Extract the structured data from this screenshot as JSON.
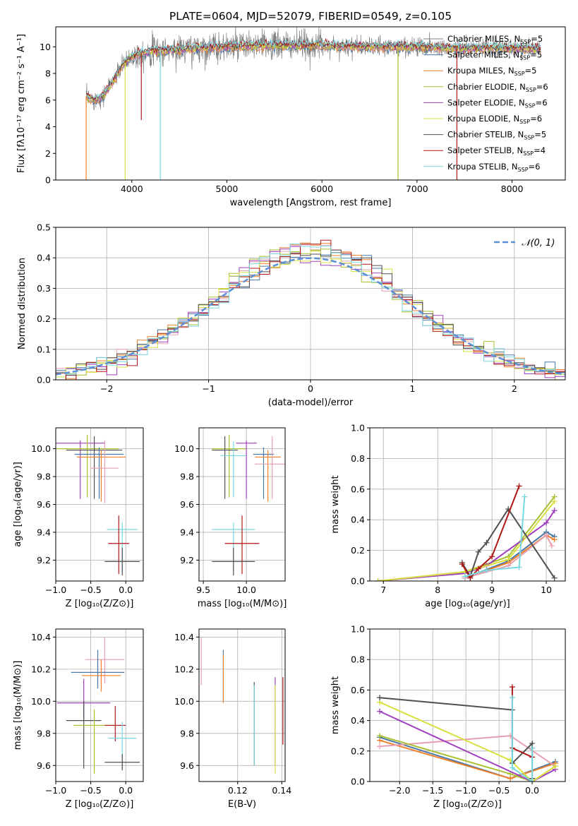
{
  "colors": {
    "grid": "#b0b0b0",
    "gray": "#808080",
    "gauss": "#5b8fd6",
    "series": [
      "#4878a8",
      "#f0802a",
      "#e8a0b0",
      "#a8c030",
      "#a040c0",
      "#d8e040",
      "#505050",
      "#b01818",
      "#78d8e0"
    ],
    "series_names": [
      "Chabrier MILES",
      "Salpeter MILES",
      "Kroupa MILES",
      "Chabrier ELODIE",
      "Salpeter ELODIE",
      "Kroupa ELODIE",
      "Chabrier STELIB",
      "Salpeter STELIB",
      "Kroupa STELIB"
    ]
  },
  "chart_data": [
    {
      "id": "spectrum",
      "type": "line",
      "title": "PLATE=0604, MJD=52079, FIBERID=0549, z=0.105",
      "xlabel": "wavelength [Angstrom, rest frame]",
      "ylabel": "Flux [fλ10⁻¹⁷ erg cm⁻² s⁻¹ A⁻¹]",
      "xlim": [
        3200,
        8560
      ],
      "ylim": [
        0,
        11.5
      ],
      "xticks": [
        4000,
        5000,
        6000,
        7000,
        8000
      ],
      "yticks": [
        0,
        2,
        4,
        6,
        8,
        10
      ],
      "grid": false,
      "legend_position": "right",
      "legend": [
        "Chabrier MILES, N_SSP=5",
        "Salpeter MILES, N_SSP=5",
        "Kroupa MILES, N_SSP=5",
        "Chabrier ELODIE, N_SSP=6",
        "Salpeter ELODIE, N_SSP=6",
        "Kroupa ELODIE, N_SSP=6",
        "Chabrier STELIB, N_SSP=5",
        "Salpeter STELIB, N_SSP=4",
        "Kroupa STELIB, N_SSP=6"
      ],
      "continuum": {
        "x": [
          3520,
          3600,
          3700,
          3800,
          3900,
          4000,
          4100,
          4200,
          4300,
          4500,
          4700,
          5000,
          5500,
          6000,
          6500,
          7000,
          7500,
          8000,
          8300
        ],
        "y": [
          6.3,
          6.0,
          6.3,
          7.4,
          8.6,
          9.3,
          9.5,
          9.7,
          9.7,
          9.8,
          9.9,
          10.0,
          10.1,
          10.1,
          10.0,
          10.0,
          9.9,
          9.9,
          9.8
        ]
      },
      "dips": [
        {
          "x": 3930,
          "y": 0
        },
        {
          "x": 4300,
          "y": 0
        },
        {
          "x": 6800,
          "y": 0
        },
        {
          "x": 7420,
          "y": 0
        },
        {
          "x": 3520,
          "y": 0
        },
        {
          "x": 4100,
          "y": 4.5
        }
      ]
    },
    {
      "id": "residuals",
      "type": "step",
      "xlabel": "(data-model)/error",
      "ylabel": "Normed distribution",
      "xlim": [
        -2.5,
        2.5
      ],
      "ylim": [
        0,
        0.5
      ],
      "xticks": [
        -2,
        -1,
        0,
        1,
        2
      ],
      "yticks": [
        0.0,
        0.1,
        0.2,
        0.3,
        0.4,
        0.5
      ],
      "grid": true,
      "legend": "𝒩(0, 1)",
      "legend_position": "top-right",
      "bin_width": 0.1,
      "gauss_label": "N(0,1)"
    },
    {
      "id": "age_vs_Z",
      "type": "errorbar",
      "xlabel": "Z [log₁₀(Z/Z⊙)]",
      "ylabel": "age  [log₁₀(age/yr)]",
      "xlim": [
        -1.0,
        0.25
      ],
      "ylim": [
        9.05,
        10.15
      ],
      "xticks": [
        -1.0,
        -0.5,
        0.0
      ],
      "yticks": [
        9.2,
        9.4,
        9.6,
        9.8,
        10.0
      ],
      "grid": true,
      "points": [
        {
          "s": 4,
          "x": -0.65,
          "xe": 0.35,
          "y": 10.04,
          "ye": 0.02,
          "ye2": 0.4
        },
        {
          "s": 3,
          "x": -0.55,
          "xe": 0.45,
          "y": 10.0,
          "ye": 0.1,
          "ye2": 0.35
        },
        {
          "s": 6,
          "x": -0.45,
          "xe": 0.4,
          "y": 9.99,
          "ye": 0.1,
          "ye2": 0.35
        },
        {
          "s": 0,
          "x": -0.38,
          "xe": 0.35,
          "y": 9.96,
          "ye": 0.05,
          "ye2": 0.32
        },
        {
          "s": 1,
          "x": -0.35,
          "xe": 0.35,
          "y": 9.94,
          "ye": 0.05,
          "ye2": 0.32
        },
        {
          "s": 2,
          "x": -0.3,
          "xe": 0.2,
          "y": 9.86,
          "ye": 0.2,
          "ye2": 0.25
        },
        {
          "s": 8,
          "x": -0.05,
          "xe": 0.22,
          "y": 9.42,
          "ye": 0.05,
          "ye2": 0.3
        },
        {
          "s": 7,
          "x": -0.1,
          "xe": 0.15,
          "y": 9.32,
          "ye": 0.2,
          "ye2": 0.22
        },
        {
          "s": 6,
          "x": -0.05,
          "xe": 0.25,
          "y": 9.19,
          "ye": 0.1,
          "ye2": 0.1
        }
      ]
    },
    {
      "id": "age_vs_mass",
      "type": "errorbar",
      "xlabel": "mass [log₁₀(M/M⊙)]",
      "ylabel": "",
      "xlim": [
        9.45,
        10.45
      ],
      "ylim": [
        9.05,
        10.15
      ],
      "xticks": [
        9.5,
        10.0
      ],
      "yticks": [
        9.2,
        9.4,
        9.6,
        9.8,
        10.0
      ],
      "grid": true,
      "points": [
        {
          "s": 3,
          "x": 9.8,
          "xe": 0.2,
          "y": 10.0,
          "ye": 0.1,
          "ye2": 0.35
        },
        {
          "s": 6,
          "x": 9.75,
          "xe": 0.15,
          "y": 9.99,
          "ye": 0.1,
          "ye2": 0.35
        },
        {
          "s": 8,
          "x": 9.85,
          "xe": 0.15,
          "y": 9.95,
          "ye": 0.1,
          "ye2": 0.3
        },
        {
          "s": 4,
          "x": 10.0,
          "xe": 0.12,
          "y": 10.04,
          "ye": 0.02,
          "ye2": 0.4
        },
        {
          "s": 0,
          "x": 10.2,
          "xe": 0.12,
          "y": 9.96,
          "ye": 0.05,
          "ye2": 0.32
        },
        {
          "s": 1,
          "x": 10.25,
          "xe": 0.15,
          "y": 9.94,
          "ye": 0.05,
          "ye2": 0.32
        },
        {
          "s": 2,
          "x": 10.3,
          "xe": 0.2,
          "y": 9.89,
          "ye": 0.2,
          "ye2": 0.25
        },
        {
          "s": 8,
          "x": 9.85,
          "xe": 0.25,
          "y": 9.42,
          "ye": 0.05,
          "ye2": 0.3
        },
        {
          "s": 7,
          "x": 9.95,
          "xe": 0.2,
          "y": 9.32,
          "ye": 0.2,
          "ye2": 0.22
        },
        {
          "s": 6,
          "x": 9.85,
          "xe": 0.25,
          "y": 9.19,
          "ye": 0.1,
          "ye2": 0.1
        }
      ]
    },
    {
      "id": "weight_vs_age",
      "type": "line",
      "xlabel": "age  [log₁₀(age/yr)]",
      "ylabel": "mass weight",
      "xlim": [
        6.75,
        10.35
      ],
      "ylim": [
        0,
        1.0
      ],
      "xticks": [
        7,
        8,
        9,
        10
      ],
      "yticks": [
        0.0,
        0.2,
        0.4,
        0.6,
        0.8,
        1.0
      ],
      "grid": true,
      "series": [
        {
          "s": 0,
          "x": [
            8.5,
            9.3,
            10.0,
            10.15
          ],
          "y": [
            0.02,
            0.13,
            0.32,
            0.29
          ]
        },
        {
          "s": 1,
          "x": [
            8.5,
            9.3,
            10.0,
            10.15
          ],
          "y": [
            0.02,
            0.12,
            0.3,
            0.27
          ]
        },
        {
          "s": 2,
          "x": [
            8.5,
            9.3,
            10.0,
            10.1
          ],
          "y": [
            0.02,
            0.1,
            0.3,
            0.23
          ]
        },
        {
          "s": 3,
          "x": [
            6.9,
            8.5,
            9.3,
            10.15
          ],
          "y": [
            0.0,
            0.06,
            0.16,
            0.55
          ]
        },
        {
          "s": 4,
          "x": [
            6.9,
            8.5,
            8.9,
            10.0,
            10.15
          ],
          "y": [
            0.0,
            0.05,
            0.1,
            0.38,
            0.46
          ]
        },
        {
          "s": 5,
          "x": [
            6.9,
            8.5,
            9.3,
            10.15
          ],
          "y": [
            0.0,
            0.06,
            0.14,
            0.52
          ]
        },
        {
          "s": 6,
          "x": [
            8.45,
            8.6,
            8.75,
            8.9,
            9.3,
            10.15
          ],
          "y": [
            0.12,
            0.03,
            0.19,
            0.25,
            0.47,
            0.02
          ]
        },
        {
          "s": 7,
          "x": [
            8.45,
            8.6,
            8.75,
            9.0,
            9.5
          ],
          "y": [
            0.11,
            0.02,
            0.08,
            0.16,
            0.62
          ]
        },
        {
          "s": 8,
          "x": [
            8.5,
            8.9,
            9.5,
            9.6
          ],
          "y": [
            0.03,
            0.07,
            0.09,
            0.55
          ]
        }
      ]
    },
    {
      "id": "mass_vs_Z",
      "type": "errorbar",
      "xlabel": "Z [log₁₀(Z/Z⊙)]",
      "ylabel": "mass [log₁₀(M/M⊙)]",
      "xlim": [
        -1.0,
        0.25
      ],
      "ylim": [
        9.5,
        10.45
      ],
      "xticks": [
        -1.0,
        -0.5,
        0.0
      ],
      "yticks": [
        9.6,
        9.8,
        10.0,
        10.2,
        10.4
      ],
      "grid": true,
      "points": [
        {
          "s": 2,
          "x": -0.3,
          "xe": 0.28,
          "y": 10.26,
          "ye": 0.14,
          "ye2": 0.15
        },
        {
          "s": 0,
          "x": -0.4,
          "xe": 0.38,
          "y": 10.18,
          "ye": 0.14,
          "ye2": 0.1
        },
        {
          "s": 1,
          "x": -0.35,
          "xe": 0.28,
          "y": 10.16,
          "ye": 0.1,
          "ye2": 0.1
        },
        {
          "s": 4,
          "x": -0.6,
          "xe": 0.38,
          "y": 9.99,
          "ye": 0.15,
          "ye2": 0.1
        },
        {
          "s": 6,
          "x": -0.6,
          "xe": 0.25,
          "y": 9.88,
          "ye": 0.12,
          "ye2": 0.3
        },
        {
          "s": 3,
          "x": -0.45,
          "xe": 0.3,
          "y": 9.85,
          "ye": 0.1,
          "ye2": 0.3
        },
        {
          "s": 7,
          "x": -0.15,
          "xe": 0.15,
          "y": 9.85,
          "ye": 0.12,
          "ye2": 0.1
        },
        {
          "s": 8,
          "x": -0.05,
          "xe": 0.2,
          "y": 9.77,
          "ye": 0.1,
          "ye2": 0.2
        },
        {
          "s": 6,
          "x": -0.05,
          "xe": 0.25,
          "y": 9.62,
          "ye": 0.05,
          "ye2": 0.05
        }
      ]
    },
    {
      "id": "mass_vs_ebv",
      "type": "errorbar",
      "xlabel": "E(B-V)",
      "ylabel": "",
      "xlim": [
        0.1025,
        0.1415
      ],
      "ylim": [
        9.5,
        10.45
      ],
      "xticks": [
        0.12,
        0.14
      ],
      "yticks": [
        9.6,
        9.8,
        10.0,
        10.2,
        10.4
      ],
      "grid": true,
      "points": [
        {
          "s": 2,
          "x": 0.1035,
          "y": 10.4,
          "ye2": 0.3
        },
        {
          "s": 0,
          "x": 0.1135,
          "y": 10.32,
          "ye2": 0.32
        },
        {
          "s": 1,
          "x": 0.1135,
          "y": 10.29,
          "ye2": 0.3
        },
        {
          "s": 6,
          "x": 0.1275,
          "y": 10.12,
          "ye2": 0.52
        },
        {
          "s": 8,
          "x": 0.1275,
          "y": 10.1,
          "ye2": 0.5
        },
        {
          "s": 4,
          "x": 0.137,
          "y": 10.15,
          "ye2": 0.55
        },
        {
          "s": 5,
          "x": 0.137,
          "y": 10.1,
          "ye2": 0.55
        },
        {
          "s": 7,
          "x": 0.1405,
          "y": 10.15,
          "ye2": 0.42
        }
      ]
    },
    {
      "id": "weight_vs_Z",
      "type": "line",
      "xlabel": "Z [log₁₀(Z/Z⊙)]",
      "ylabel": "mass weight",
      "xlim": [
        -2.45,
        0.5
      ],
      "ylim": [
        0,
        1.0
      ],
      "xticks": [
        -2.0,
        -1.5,
        -1.0,
        -0.5,
        0.0
      ],
      "yticks": [
        0.0,
        0.2,
        0.4,
        0.6,
        0.8,
        1.0
      ],
      "grid": true,
      "series": [
        {
          "s": 0,
          "x": [
            -2.3,
            -0.33,
            0.35
          ],
          "y": [
            0.29,
            0.02,
            0.13
          ]
        },
        {
          "s": 1,
          "x": [
            -2.3,
            -0.33,
            0.35
          ],
          "y": [
            0.27,
            0.02,
            0.12
          ]
        },
        {
          "s": 2,
          "x": [
            -2.3,
            -0.33,
            0.35
          ],
          "y": [
            0.23,
            0.3,
            0.1
          ]
        },
        {
          "s": 3,
          "x": [
            -2.3,
            -0.33,
            0.0,
            0.35
          ],
          "y": [
            0.3,
            0.05,
            0.0,
            0.1
          ]
        },
        {
          "s": 4,
          "x": [
            -2.3,
            0.0,
            0.35
          ],
          "y": [
            0.46,
            0.0,
            0.08
          ]
        },
        {
          "s": 5,
          "x": [
            -2.3,
            -0.33,
            0.0,
            0.35
          ],
          "y": [
            0.52,
            0.14,
            0.0,
            0.1
          ]
        },
        {
          "s": 6,
          "x": [
            -2.3,
            -0.3,
            -0.3,
            0.0,
            0.0
          ],
          "y": [
            0.55,
            0.47,
            0.12,
            0.25,
            0.02
          ]
        },
        {
          "s": 7,
          "x": [
            -0.3,
            -0.3,
            0.0,
            0.0
          ],
          "y": [
            0.62,
            0.22,
            0.16,
            0.22
          ]
        },
        {
          "s": 8,
          "x": [
            -0.3,
            -0.3,
            0.0,
            0.0
          ],
          "y": [
            0.55,
            0.09,
            0.0,
            0.22
          ]
        }
      ]
    }
  ]
}
